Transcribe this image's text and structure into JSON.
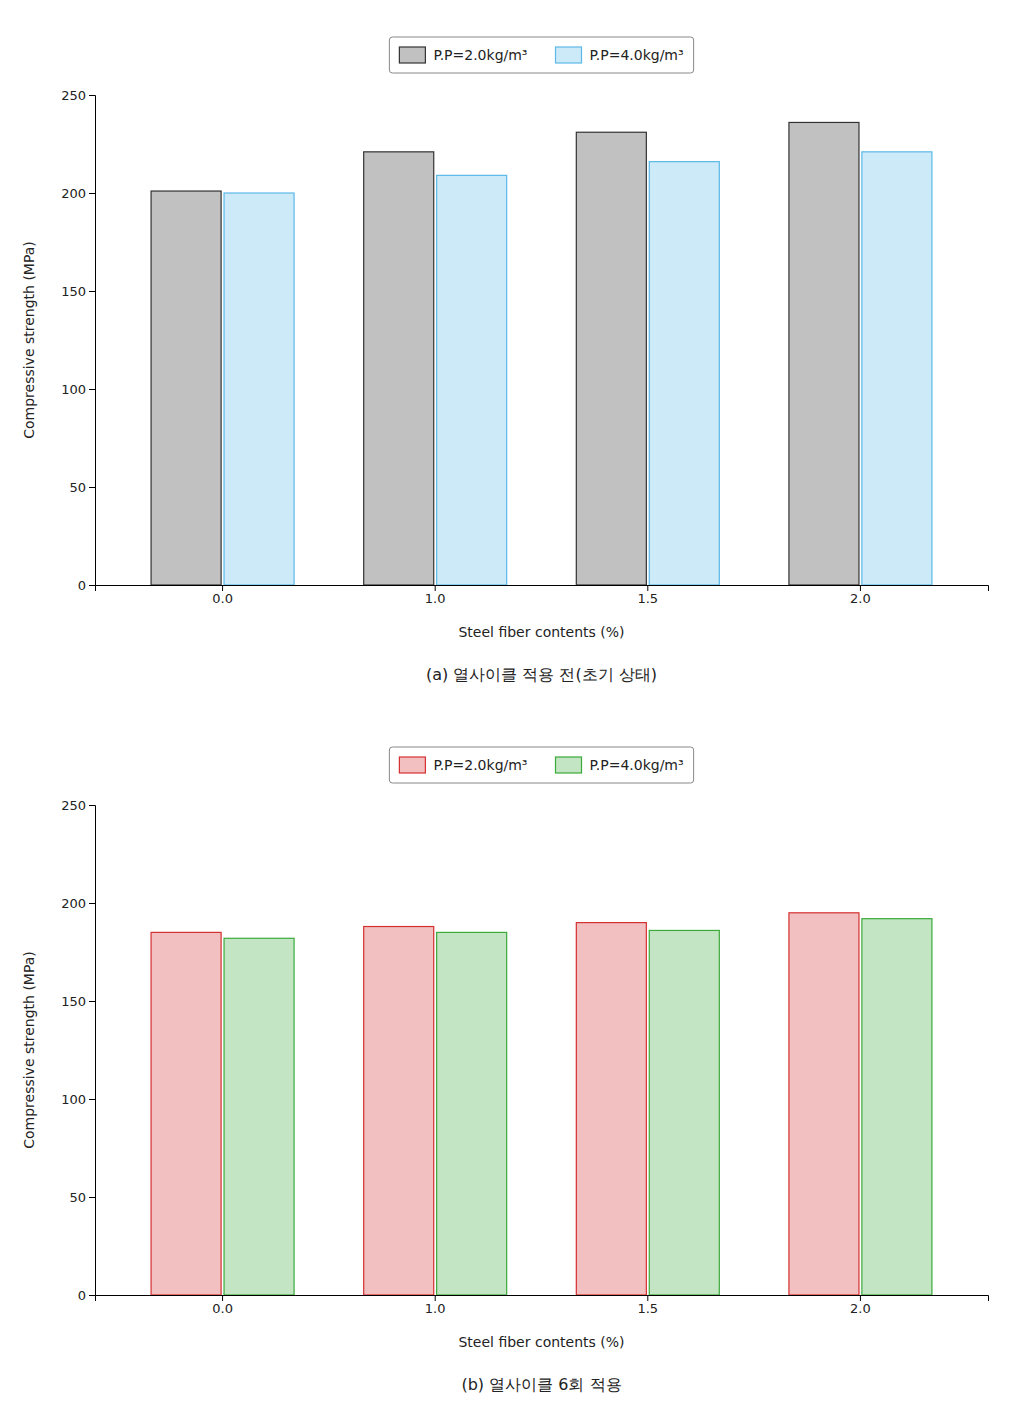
{
  "chart_data": [
    {
      "type": "bar",
      "subtitle": "(a)  열사이클 적용 전(초기 상태)",
      "xlabel": "Steel fiber contents (%)",
      "ylabel": "Compressive strength (MPa)",
      "categories": [
        "0.0",
        "1.0",
        "1.5",
        "2.0"
      ],
      "series": [
        {
          "name": "P.P=2.0kg/m³",
          "color": "#333333",
          "values": [
            201,
            221,
            231,
            236
          ]
        },
        {
          "name": "P.P=4.0kg/m³",
          "color": "#5bb8e8",
          "values": [
            200,
            209,
            216,
            221
          ]
        }
      ],
      "ylim": [
        0,
        250
      ],
      "yticks": [
        0,
        50,
        100,
        150,
        200,
        250
      ],
      "grid": false,
      "legend": "top"
    },
    {
      "type": "bar",
      "subtitle": "(b)  열사이클 6회 적용",
      "xlabel": "Steel fiber contents (%)",
      "ylabel": "Compressive strength (MPa)",
      "categories": [
        "0.0",
        "1.0",
        "1.5",
        "2.0"
      ],
      "series": [
        {
          "name": "P.P=2.0kg/m³",
          "color": "#d43030",
          "values": [
            185,
            188,
            190,
            195
          ]
        },
        {
          "name": "P.P=4.0kg/m³",
          "color": "#3aaa3a",
          "values": [
            182,
            185,
            186,
            192
          ]
        }
      ],
      "ylim": [
        0,
        250
      ],
      "yticks": [
        0,
        50,
        100,
        150,
        200,
        250
      ],
      "grid": false,
      "legend": "top"
    }
  ]
}
